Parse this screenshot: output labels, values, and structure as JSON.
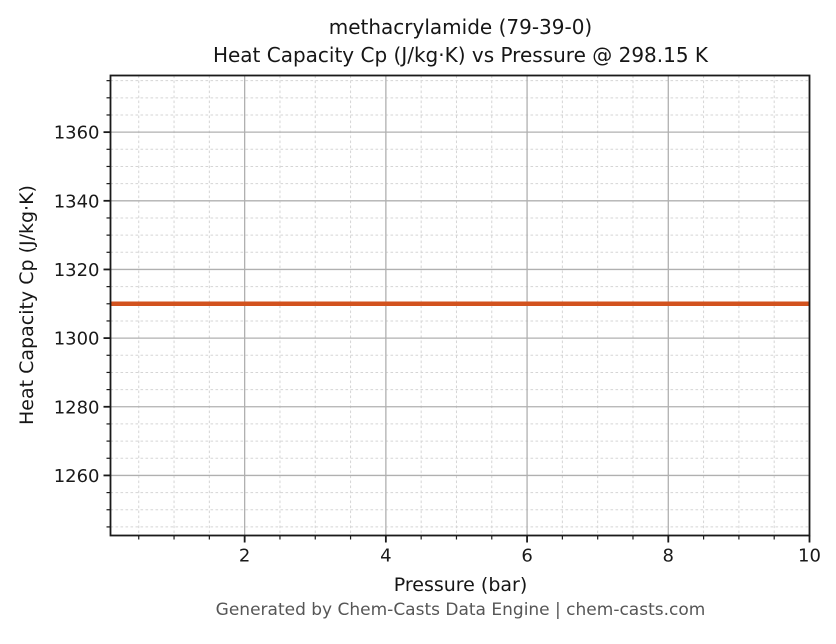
{
  "footer": "Generated by Chem-Casts Data Engine | chem-casts.com",
  "chart_data": {
    "type": "line",
    "title_lines": [
      "methacrylamide (79-39-0)",
      "Heat Capacity Cp (J/kg·K) vs Pressure @ 298.15 K"
    ],
    "xlabel": "Pressure (bar)",
    "ylabel": "Heat Capacity Cp (J/kg·K)",
    "series": [
      {
        "name": "Heat Capacity Cp",
        "x": [
          0.1,
          10.0
        ],
        "y": [
          1310.0,
          1310.0
        ]
      }
    ],
    "xlim": [
      0.1,
      10.0
    ],
    "ylim": [
      1242.5,
      1376.5
    ],
    "xticks": [
      2,
      4,
      6,
      8,
      10
    ],
    "yticks": [
      1260,
      1280,
      1300,
      1320,
      1340,
      1360
    ],
    "x_minor_step": 0.5,
    "y_minor_step": 5,
    "grid": {
      "major": true,
      "minor": true,
      "minor_style": "dashed"
    },
    "legend": "none",
    "colors": {
      "line": "#d2521e",
      "grid_major": "#b0b0b0",
      "grid_minor": "#d5d5d5",
      "axis": "#1a1a1a",
      "tick_label": "#1a1a1a",
      "title": "#161616",
      "footer_text": "#565656",
      "background": "#ffffff"
    }
  }
}
